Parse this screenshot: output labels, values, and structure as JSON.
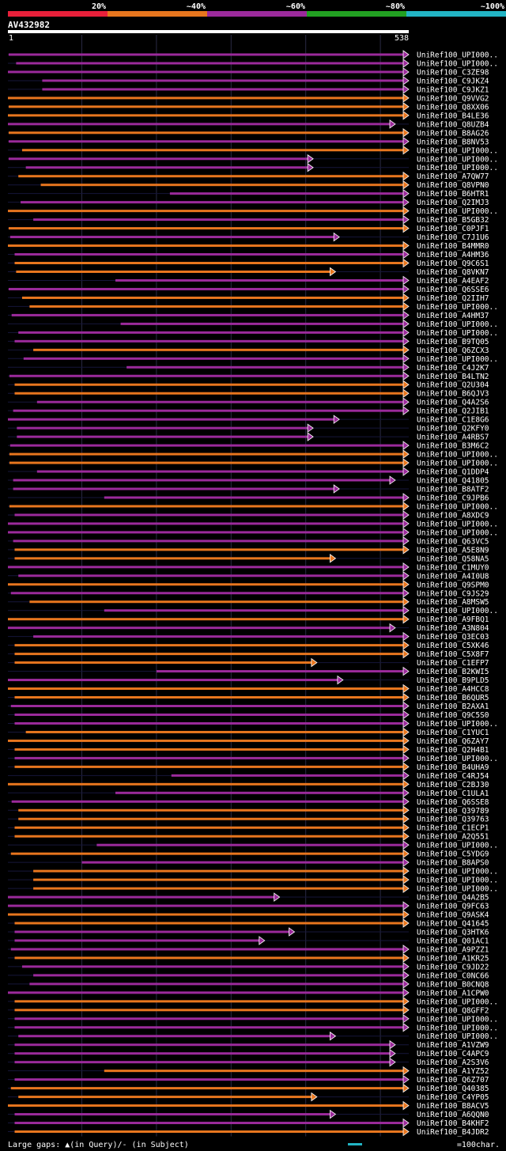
{
  "legend": {
    "bins": [
      {
        "label": "20%",
        "color": "#e8203a"
      },
      {
        "label": "~40%",
        "color": "#e8761e"
      },
      {
        "label": "~60%",
        "color": "#9b2a9b"
      },
      {
        "label": "~80%",
        "color": "#22a022"
      },
      {
        "label": "~100%",
        "color": "#22b4c4"
      }
    ]
  },
  "query": {
    "id": "AV432982",
    "start_label": "1",
    "end_label": "538"
  },
  "footer": {
    "gaps_text": "Large gaps: ▲(in Query)/- (in Subject)",
    "scale_text": "=100char."
  },
  "colors": {
    "orange": "#e8761e",
    "purple": "#9b2a9b",
    "query_bar": "#ffffff",
    "grid": "#1f1f3a",
    "text": "#ffffff"
  },
  "chart_data": {
    "type": "alignment-overview",
    "query_length": 538,
    "hits": [
      {
        "name": "UniRef100_UPI000..",
        "color": "purple",
        "start": 2,
        "end": 538
      },
      {
        "name": "UniRef100_UPI000..",
        "color": "purple",
        "start": 12,
        "end": 538
      },
      {
        "name": "UniRef100_C3ZE98",
        "color": "purple",
        "start": 1,
        "end": 538
      },
      {
        "name": "UniRef100_C9JKZ4",
        "color": "purple",
        "start": 47,
        "end": 538
      },
      {
        "name": "UniRef100_C9JKZ1",
        "color": "purple",
        "start": 47,
        "end": 538
      },
      {
        "name": "UniRef100_Q9VVG2",
        "color": "orange",
        "start": 1,
        "end": 538
      },
      {
        "name": "UniRef100_Q8XX06",
        "color": "orange",
        "start": 2,
        "end": 538
      },
      {
        "name": "UniRef100_B4LE36",
        "color": "orange",
        "start": 1,
        "end": 538
      },
      {
        "name": "UniRef100_Q8UZB4",
        "color": "purple",
        "start": 1,
        "end": 520
      },
      {
        "name": "UniRef100_B8AG26",
        "color": "orange",
        "start": 2,
        "end": 538
      },
      {
        "name": "UniRef100_B8NV53",
        "color": "purple",
        "start": 2,
        "end": 538
      },
      {
        "name": "UniRef100_UPI000..",
        "color": "orange",
        "start": 20,
        "end": 538
      },
      {
        "name": "UniRef100_UPI000..",
        "color": "purple",
        "start": 2,
        "end": 410
      },
      {
        "name": "UniRef100_UPI000..",
        "color": "purple",
        "start": 25,
        "end": 410
      },
      {
        "name": "UniRef100_A7QW77",
        "color": "orange",
        "start": 15,
        "end": 538
      },
      {
        "name": "UniRef100_Q8VPN0",
        "color": "orange",
        "start": 45,
        "end": 538
      },
      {
        "name": "UniRef100_B6HTR1",
        "color": "purple",
        "start": 218,
        "end": 538
      },
      {
        "name": "UniRef100_Q2IMJ3",
        "color": "purple",
        "start": 18,
        "end": 538
      },
      {
        "name": "UniRef100_UPI000..",
        "color": "orange",
        "start": 1,
        "end": 538
      },
      {
        "name": "UniRef100_B5GB32",
        "color": "purple",
        "start": 35,
        "end": 538
      },
      {
        "name": "UniRef100_C0PJF1",
        "color": "orange",
        "start": 2,
        "end": 538
      },
      {
        "name": "UniRef100_C7J1U6",
        "color": "purple",
        "start": 4,
        "end": 445
      },
      {
        "name": "UniRef100_B4MMR0",
        "color": "orange",
        "start": 1,
        "end": 538
      },
      {
        "name": "UniRef100_A4HM36",
        "color": "purple",
        "start": 10,
        "end": 538
      },
      {
        "name": "UniRef100_Q9C6S1",
        "color": "orange",
        "start": 10,
        "end": 538
      },
      {
        "name": "UniRef100_Q8VKN7",
        "color": "orange",
        "start": 12,
        "end": 440
      },
      {
        "name": "UniRef100_A4EAF2",
        "color": "purple",
        "start": 145,
        "end": 538
      },
      {
        "name": "UniRef100_Q6SSE6",
        "color": "purple",
        "start": 2,
        "end": 538
      },
      {
        "name": "UniRef100_Q2IIH7",
        "color": "orange",
        "start": 20,
        "end": 538
      },
      {
        "name": "UniRef100_UPI000..",
        "color": "orange",
        "start": 30,
        "end": 538
      },
      {
        "name": "UniRef100_A4HM37",
        "color": "purple",
        "start": 6,
        "end": 538
      },
      {
        "name": "UniRef100_UPI000..",
        "color": "purple",
        "start": 152,
        "end": 538
      },
      {
        "name": "UniRef100_UPI000..",
        "color": "purple",
        "start": 15,
        "end": 538
      },
      {
        "name": "UniRef100_B9TQ05",
        "color": "purple",
        "start": 10,
        "end": 538
      },
      {
        "name": "UniRef100_Q6ZCX3",
        "color": "orange",
        "start": 35,
        "end": 538
      },
      {
        "name": "UniRef100_UPI000..",
        "color": "purple",
        "start": 22,
        "end": 538
      },
      {
        "name": "UniRef100_C4J2K7",
        "color": "purple",
        "start": 160,
        "end": 538
      },
      {
        "name": "UniRef100_B4LTN2",
        "color": "purple",
        "start": 3,
        "end": 538
      },
      {
        "name": "UniRef100_Q2U304",
        "color": "orange",
        "start": 10,
        "end": 538
      },
      {
        "name": "UniRef100_B6QJV3",
        "color": "orange",
        "start": 10,
        "end": 538
      },
      {
        "name": "UniRef100_Q4A2S6",
        "color": "purple",
        "start": 40,
        "end": 538
      },
      {
        "name": "UniRef100_Q2JIB1",
        "color": "purple",
        "start": 8,
        "end": 538
      },
      {
        "name": "UniRef100_C1E8G6",
        "color": "purple",
        "start": 1,
        "end": 445
      },
      {
        "name": "UniRef100_Q2KFY0",
        "color": "purple",
        "start": 13,
        "end": 410
      },
      {
        "name": "UniRef100_A4RBS7",
        "color": "purple",
        "start": 13,
        "end": 410
      },
      {
        "name": "UniRef100_B3M6C2",
        "color": "purple",
        "start": 4,
        "end": 538
      },
      {
        "name": "UniRef100_UPI000..",
        "color": "orange",
        "start": 3,
        "end": 538
      },
      {
        "name": "UniRef100_UPI000..",
        "color": "orange",
        "start": 3,
        "end": 538
      },
      {
        "name": "UniRef100_Q1DDP4",
        "color": "purple",
        "start": 40,
        "end": 538
      },
      {
        "name": "UniRef100_Q41805",
        "color": "purple",
        "start": 8,
        "end": 520
      },
      {
        "name": "UniRef100_B8ATF2",
        "color": "purple",
        "start": 8,
        "end": 445
      },
      {
        "name": "UniRef100_C9JPB6",
        "color": "purple",
        "start": 130,
        "end": 538
      },
      {
        "name": "UniRef100_UPI000..",
        "color": "orange",
        "start": 3,
        "end": 538
      },
      {
        "name": "UniRef100_A8XDC9",
        "color": "purple",
        "start": 10,
        "end": 538
      },
      {
        "name": "UniRef100_UPI000..",
        "color": "purple",
        "start": 1,
        "end": 538
      },
      {
        "name": "UniRef100_UPI000..",
        "color": "purple",
        "start": 1,
        "end": 538
      },
      {
        "name": "UniRef100_Q63VC5",
        "color": "purple",
        "start": 8,
        "end": 538
      },
      {
        "name": "UniRef100_A5E8N9",
        "color": "orange",
        "start": 10,
        "end": 538
      },
      {
        "name": "UniRef100_Q58NA5",
        "color": "orange",
        "start": 10,
        "end": 440
      },
      {
        "name": "UniRef100_C1MUY0",
        "color": "purple",
        "start": 1,
        "end": 538
      },
      {
        "name": "UniRef100_A4I0U8",
        "color": "purple",
        "start": 15,
        "end": 538
      },
      {
        "name": "UniRef100_Q9SPM0",
        "color": "orange",
        "start": 1,
        "end": 538
      },
      {
        "name": "UniRef100_C9JS29",
        "color": "purple",
        "start": 5,
        "end": 538
      },
      {
        "name": "UniRef100_A8MSW5",
        "color": "orange",
        "start": 30,
        "end": 538
      },
      {
        "name": "UniRef100_UPI000..",
        "color": "purple",
        "start": 130,
        "end": 538
      },
      {
        "name": "UniRef100_A9FBQ1",
        "color": "orange",
        "start": 1,
        "end": 538
      },
      {
        "name": "UniRef100_A3N804",
        "color": "purple",
        "start": 1,
        "end": 520
      },
      {
        "name": "UniRef100_Q3EC03",
        "color": "purple",
        "start": 35,
        "end": 538
      },
      {
        "name": "UniRef100_C5XK46",
        "color": "orange",
        "start": 10,
        "end": 538
      },
      {
        "name": "UniRef100_C5X8F7",
        "color": "orange",
        "start": 10,
        "end": 538
      },
      {
        "name": "UniRef100_C1EFP7",
        "color": "orange",
        "start": 10,
        "end": 415
      },
      {
        "name": "UniRef100_B2KWI5",
        "color": "purple",
        "start": 200,
        "end": 538
      },
      {
        "name": "UniRef100_B9PLD5",
        "color": "purple",
        "start": 1,
        "end": 450
      },
      {
        "name": "UniRef100_A4HCC8",
        "color": "orange",
        "start": 1,
        "end": 538
      },
      {
        "name": "UniRef100_B6QUR5",
        "color": "orange",
        "start": 10,
        "end": 538
      },
      {
        "name": "UniRef100_B2AXA1",
        "color": "purple",
        "start": 5,
        "end": 538
      },
      {
        "name": "UniRef100_Q9C5S0",
        "color": "purple",
        "start": 10,
        "end": 538
      },
      {
        "name": "UniRef100_UPI000..",
        "color": "purple",
        "start": 10,
        "end": 538
      },
      {
        "name": "UniRef100_C1YUC1",
        "color": "orange",
        "start": 25,
        "end": 538
      },
      {
        "name": "UniRef100_Q6ZAY7",
        "color": "orange",
        "start": 1,
        "end": 538
      },
      {
        "name": "UniRef100_Q2H4B1",
        "color": "orange",
        "start": 10,
        "end": 538
      },
      {
        "name": "UniRef100_UPI000..",
        "color": "purple",
        "start": 10,
        "end": 538
      },
      {
        "name": "UniRef100_B4UHA9",
        "color": "orange",
        "start": 10,
        "end": 538
      },
      {
        "name": "UniRef100_C4RJ54",
        "color": "purple",
        "start": 220,
        "end": 538
      },
      {
        "name": "UniRef100_C2BJ30",
        "color": "orange",
        "start": 1,
        "end": 538
      },
      {
        "name": "UniRef100_C1ULA1",
        "color": "purple",
        "start": 145,
        "end": 538
      },
      {
        "name": "UniRef100_Q6SSE8",
        "color": "purple",
        "start": 6,
        "end": 538
      },
      {
        "name": "UniRef100_Q39789",
        "color": "orange",
        "start": 15,
        "end": 538
      },
      {
        "name": "UniRef100_Q39763",
        "color": "orange",
        "start": 15,
        "end": 538
      },
      {
        "name": "UniRef100_C1ECP1",
        "color": "orange",
        "start": 10,
        "end": 538
      },
      {
        "name": "UniRef100_A2Q551",
        "color": "orange",
        "start": 10,
        "end": 538
      },
      {
        "name": "UniRef100_UPI000..",
        "color": "purple",
        "start": 120,
        "end": 538
      },
      {
        "name": "UniRef100_C5YDG9",
        "color": "orange",
        "start": 5,
        "end": 538
      },
      {
        "name": "UniRef100_B8APS0",
        "color": "purple",
        "start": 100,
        "end": 538
      },
      {
        "name": "UniRef100_UPI000..",
        "color": "orange",
        "start": 35,
        "end": 538
      },
      {
        "name": "UniRef100_UPI000..",
        "color": "orange",
        "start": 35,
        "end": 538
      },
      {
        "name": "UniRef100_UPI000..",
        "color": "orange",
        "start": 35,
        "end": 538
      },
      {
        "name": "UniRef100_Q4A2B5",
        "color": "purple",
        "start": 1,
        "end": 365
      },
      {
        "name": "UniRef100_Q9FC63",
        "color": "purple",
        "start": 1,
        "end": 538
      },
      {
        "name": "UniRef100_Q9ASK4",
        "color": "orange",
        "start": 1,
        "end": 538
      },
      {
        "name": "UniRef100_Q41645",
        "color": "orange",
        "start": 10,
        "end": 538
      },
      {
        "name": "UniRef100_Q3HTK6",
        "color": "purple",
        "start": 10,
        "end": 385
      },
      {
        "name": "UniRef100_Q01AC1",
        "color": "purple",
        "start": 10,
        "end": 345
      },
      {
        "name": "UniRef100_A9PZZ1",
        "color": "purple",
        "start": 5,
        "end": 538
      },
      {
        "name": "UniRef100_A1KR25",
        "color": "orange",
        "start": 10,
        "end": 538
      },
      {
        "name": "UniRef100_C9JD22",
        "color": "purple",
        "start": 20,
        "end": 538
      },
      {
        "name": "UniRef100_C0NC66",
        "color": "purple",
        "start": 35,
        "end": 538
      },
      {
        "name": "UniRef100_B0CNQ8",
        "color": "purple",
        "start": 30,
        "end": 538
      },
      {
        "name": "UniRef100_A1CPW0",
        "color": "purple",
        "start": 1,
        "end": 538
      },
      {
        "name": "UniRef100_UPI000..",
        "color": "orange",
        "start": 10,
        "end": 538
      },
      {
        "name": "UniRef100_Q8GFF2",
        "color": "orange",
        "start": 10,
        "end": 538
      },
      {
        "name": "UniRef100_UPI000..",
        "color": "purple",
        "start": 10,
        "end": 538
      },
      {
        "name": "UniRef100_UPI000..",
        "color": "purple",
        "start": 10,
        "end": 538
      },
      {
        "name": "UniRef100_UPI000..",
        "color": "purple",
        "start": 15,
        "end": 440
      },
      {
        "name": "UniRef100_A1VZW9",
        "color": "purple",
        "start": 10,
        "end": 520
      },
      {
        "name": "UniRef100_C4APC9",
        "color": "purple",
        "start": 10,
        "end": 520
      },
      {
        "name": "UniRef100_A2S3V6",
        "color": "purple",
        "start": 10,
        "end": 520
      },
      {
        "name": "UniRef100_A1YZ52",
        "color": "orange",
        "start": 130,
        "end": 538
      },
      {
        "name": "UniRef100_Q6Z707",
        "color": "purple",
        "start": 10,
        "end": 538
      },
      {
        "name": "UniRef100_Q40385",
        "color": "orange",
        "start": 5,
        "end": 538
      },
      {
        "name": "UniRef100_C4YP05",
        "color": "orange",
        "start": 15,
        "end": 415
      },
      {
        "name": "UniRef100_B8ACV5",
        "color": "orange",
        "start": 1,
        "end": 538
      },
      {
        "name": "UniRef100_A6QQN0",
        "color": "purple",
        "start": 10,
        "end": 440
      },
      {
        "name": "UniRef100_B4KHF2",
        "color": "purple",
        "start": 10,
        "end": 538
      },
      {
        "name": "UniRef100_B4JDR2",
        "color": "orange",
        "start": 10,
        "end": 538
      }
    ]
  }
}
